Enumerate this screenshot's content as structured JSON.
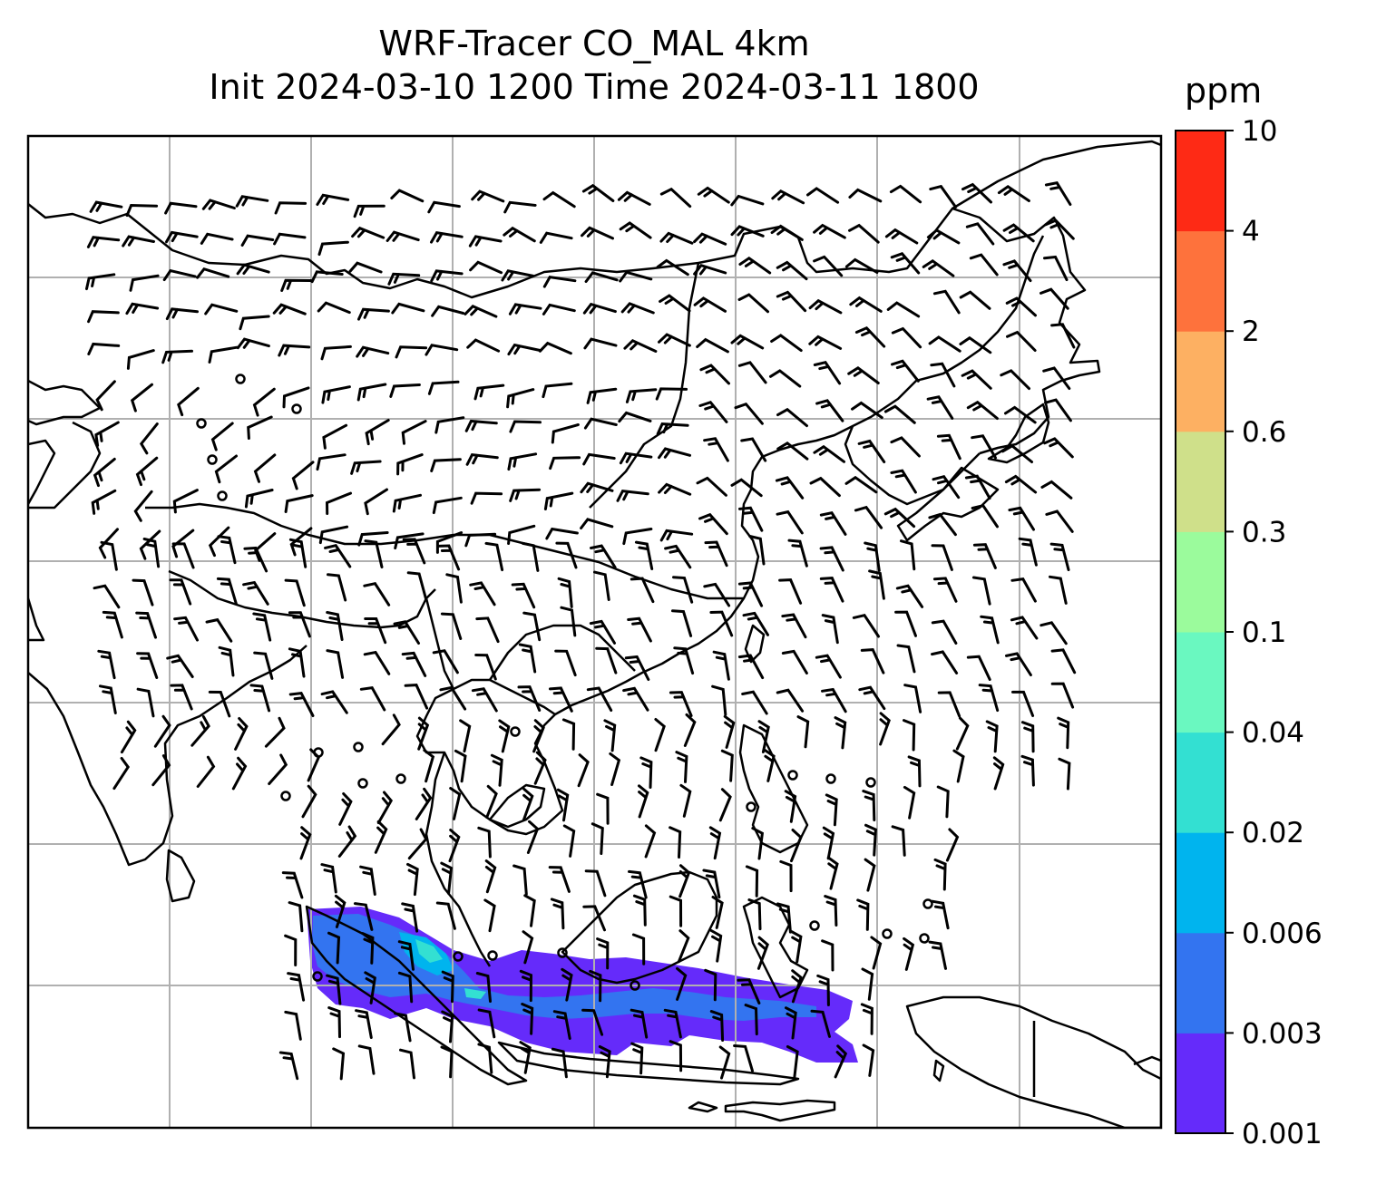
{
  "title": {
    "line1": "WRF-Tracer CO_MAL 4km",
    "line2": "Init 2024-03-10 1200 Time 2024-03-11 1800"
  },
  "colorbar": {
    "unit": "ppm",
    "levels": [
      "0.001",
      "0.003",
      "0.006",
      "0.02",
      "0.04",
      "0.1",
      "0.3",
      "0.6",
      "2",
      "4",
      "10"
    ],
    "colors": [
      "#652bfa",
      "#3374f0",
      "#00b4ee",
      "#33e0d2",
      "#6af8c0",
      "#9bfb9c",
      "#cfe08a",
      "#fdb062",
      "#fe723c",
      "#fe2a15"
    ]
  },
  "map": {
    "gridline_color": "#b0b0b0",
    "coastline_color": "#000000",
    "wind_barbs": "black",
    "calm_markers": "circles"
  }
}
